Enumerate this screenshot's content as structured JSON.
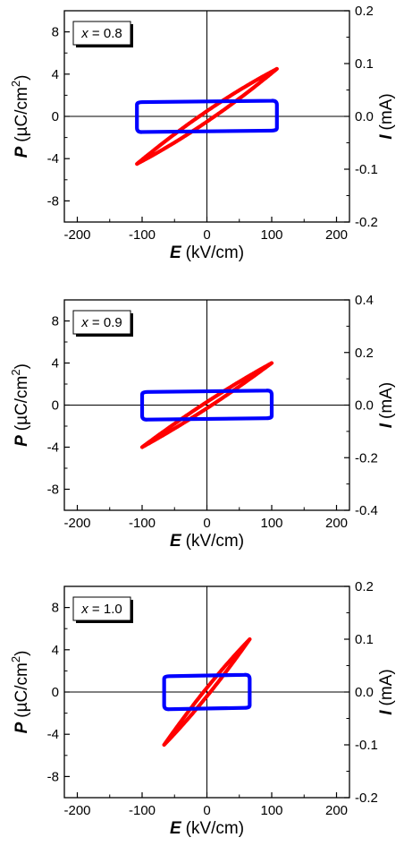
{
  "chart_data": [
    {
      "type": "line",
      "label_var": "x",
      "label_value": "0.8",
      "xlabel_sym": "E",
      "xlabel_unit": "(kV/cm)",
      "ylabel_sym": "P",
      "ylabel_unit": "(µC/cm",
      "ylabel_sup": "2",
      "ylabel_close": ")",
      "y2label_sym": "I",
      "y2label_unit": "(mA)",
      "xlim": [
        -220,
        220
      ],
      "ylim": [
        -10,
        10
      ],
      "y2lim": [
        -0.2,
        0.2
      ],
      "xticks": [
        "-200",
        "-100",
        "0",
        "100",
        "200"
      ],
      "yticks": [
        "8",
        "4",
        "0",
        "-4",
        "-8"
      ],
      "y2ticks": [
        "0.2",
        "0.1",
        "0.0",
        "-0.1",
        "-0.2"
      ],
      "series": [
        {
          "color": "#ff0000",
          "axis": "left",
          "kind": "PE-loop",
          "emax": 108,
          "pmax": 4.5,
          "offset_e": 8,
          "width": 0.5
        },
        {
          "color": "#0000ff",
          "axis": "right",
          "kind": "I-loop",
          "emax": 108,
          "ihigh": 0.027,
          "ilow": -0.027,
          "tilt": 0.0
        }
      ]
    },
    {
      "type": "line",
      "label_var": "x",
      "label_value": "0.9",
      "xlabel_sym": "E",
      "xlabel_unit": "(kV/cm)",
      "ylabel_sym": "P",
      "ylabel_unit": "(µC/cm",
      "ylabel_sup": "2",
      "ylabel_close": ")",
      "y2label_sym": "I",
      "y2label_unit": "(mA)",
      "xlim": [
        -220,
        220
      ],
      "ylim": [
        -10,
        10
      ],
      "y2lim": [
        -0.4,
        0.4
      ],
      "xticks": [
        "-200",
        "-100",
        "0",
        "100",
        "200"
      ],
      "yticks": [
        "8",
        "4",
        "0",
        "-4",
        "-8"
      ],
      "y2ticks": [
        "0.4",
        "0.2",
        "0.0",
        "-0.2",
        "-0.4"
      ],
      "series": [
        {
          "color": "#ff0000",
          "axis": "left",
          "kind": "PE-loop",
          "emax": 100,
          "pmax": 4.0,
          "offset_e": 5,
          "width": 0.3
        },
        {
          "color": "#0000ff",
          "axis": "right",
          "kind": "I-loop",
          "emax": 100,
          "ihigh": 0.05,
          "ilow": -0.05,
          "tilt": 0.0
        }
      ]
    },
    {
      "type": "line",
      "label_var": "x",
      "label_value": "1.0",
      "xlabel_sym": "E",
      "xlabel_unit": "(kV/cm)",
      "ylabel_sym": "P",
      "ylabel_unit": "(µC/cm",
      "ylabel_sup": "2",
      "ylabel_close": ")",
      "y2label_sym": "I",
      "y2label_unit": "(mA)",
      "xlim": [
        -220,
        220
      ],
      "ylim": [
        -10,
        10
      ],
      "y2lim": [
        -0.2,
        0.2
      ],
      "xticks": [
        "-200",
        "-100",
        "0",
        "100",
        "200"
      ],
      "yticks": [
        "8",
        "4",
        "0",
        "-4",
        "-8"
      ],
      "y2ticks": [
        "0.2",
        "0.1",
        "0.0",
        "-0.1",
        "-0.2"
      ],
      "series": [
        {
          "color": "#ff0000",
          "axis": "left",
          "kind": "PE-loop",
          "emax": 66,
          "pmax": 5.0,
          "offset_e": 4,
          "width": 0.4
        },
        {
          "color": "#0000ff",
          "axis": "right",
          "kind": "I-loop",
          "emax": 66,
          "ihigh": 0.03,
          "ilow": -0.03,
          "tilt": 0.0
        }
      ]
    }
  ]
}
